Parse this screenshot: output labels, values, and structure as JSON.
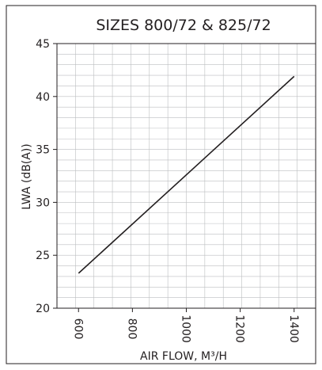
{
  "chart_data": {
    "type": "line",
    "title": "SIZES 800/72 & 825/72",
    "xlabel": "AIR FLOW, M³/H",
    "ylabel": "LWA  (dB(A))",
    "xlim": [
      520,
      1480
    ],
    "ylim": [
      20,
      45
    ],
    "x_ticks": [
      600,
      800,
      1000,
      1200,
      1400
    ],
    "x_tick_labels": [
      "600",
      "800",
      "1000",
      "1200",
      "1400"
    ],
    "y_ticks": [
      20,
      25,
      30,
      35,
      40,
      45
    ],
    "y_tick_labels": [
      "20",
      "25",
      "30",
      "35",
      "40",
      "45"
    ],
    "grid": true,
    "legend": "none",
    "series": [
      {
        "x": [
          600,
          1400
        ],
        "y": [
          23.3,
          41.9
        ]
      }
    ],
    "colors": {
      "line": "#231f20",
      "grid": "#bcbec0",
      "frame": "#231f20"
    }
  }
}
